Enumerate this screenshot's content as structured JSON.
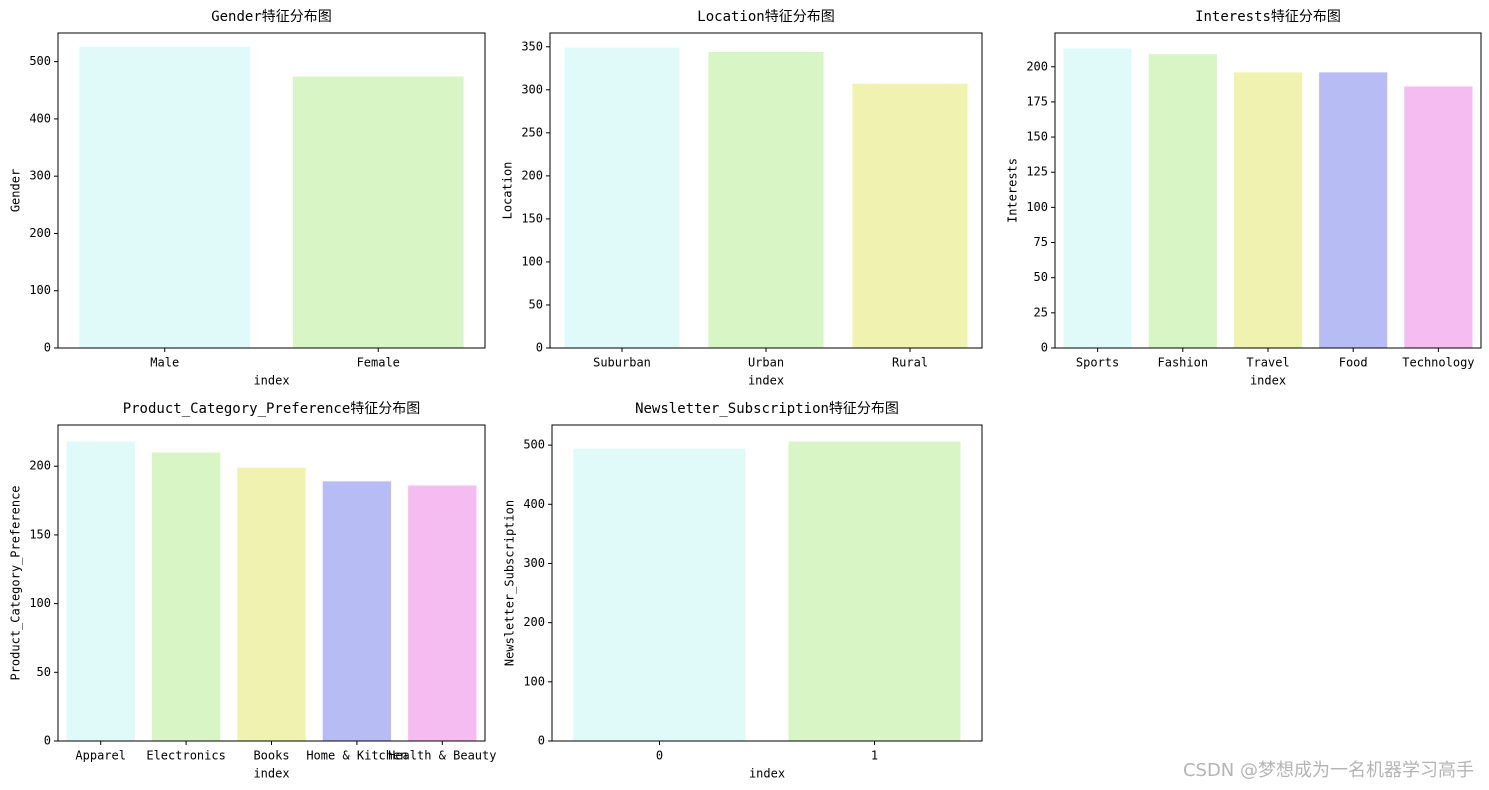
{
  "chart_data": [
    {
      "type": "bar",
      "title": "Gender特征分布图",
      "xlabel": "index",
      "ylabel": "Gender",
      "categories": [
        "Male",
        "Female"
      ],
      "values": [
        526,
        474
      ],
      "colors": [
        "#e0fafa",
        "#d8f6c5"
      ],
      "ylim": [
        0,
        550
      ],
      "yticks": [
        0,
        100,
        200,
        300,
        400,
        500
      ]
    },
    {
      "type": "bar",
      "title": "Location特征分布图",
      "xlabel": "index",
      "ylabel": "Location",
      "categories": [
        "Suburban",
        "Urban",
        "Rural"
      ],
      "values": [
        349,
        344,
        307
      ],
      "colors": [
        "#e0fafa",
        "#d8f6c5",
        "#f0f2b0"
      ],
      "ylim": [
        0,
        366
      ],
      "yticks": [
        0,
        50,
        100,
        150,
        200,
        250,
        300,
        350
      ]
    },
    {
      "type": "bar",
      "title": "Interests特征分布图",
      "xlabel": "index",
      "ylabel": "Interests",
      "categories": [
        "Sports",
        "Fashion",
        "Travel",
        "Food",
        "Technology"
      ],
      "values": [
        213,
        209,
        196,
        196,
        186
      ],
      "colors": [
        "#e0fafa",
        "#d8f6c5",
        "#f0f2b0",
        "#b8bcf4",
        "#f4bcf0"
      ],
      "ylim": [
        0,
        224
      ],
      "yticks": [
        0,
        25,
        50,
        75,
        100,
        125,
        150,
        175,
        200
      ]
    },
    {
      "type": "bar",
      "title": "Product_Category_Preference特征分布图",
      "xlabel": "index",
      "ylabel": "Product_Category_Preference",
      "categories": [
        "Apparel",
        "Electronics",
        "Books",
        "Home & Kitchen",
        "Health & Beauty"
      ],
      "values": [
        218,
        210,
        199,
        189,
        186
      ],
      "colors": [
        "#e0fafa",
        "#d8f6c5",
        "#f0f2b0",
        "#b8bcf4",
        "#f4bcf0"
      ],
      "ylim": [
        0,
        230
      ],
      "yticks": [
        0,
        50,
        100,
        150,
        200
      ]
    },
    {
      "type": "bar",
      "title": "Newsletter_Subscription特征分布图",
      "xlabel": "index",
      "ylabel": "Newsletter_Subscription",
      "categories": [
        "0",
        "1"
      ],
      "values": [
        494,
        506
      ],
      "colors": [
        "#e0fafa",
        "#d8f6c5"
      ],
      "ylim": [
        0,
        534
      ],
      "yticks": [
        0,
        100,
        200,
        300,
        400,
        500
      ]
    }
  ],
  "watermark": "CSDN @梦想成为一名机器学习高手"
}
